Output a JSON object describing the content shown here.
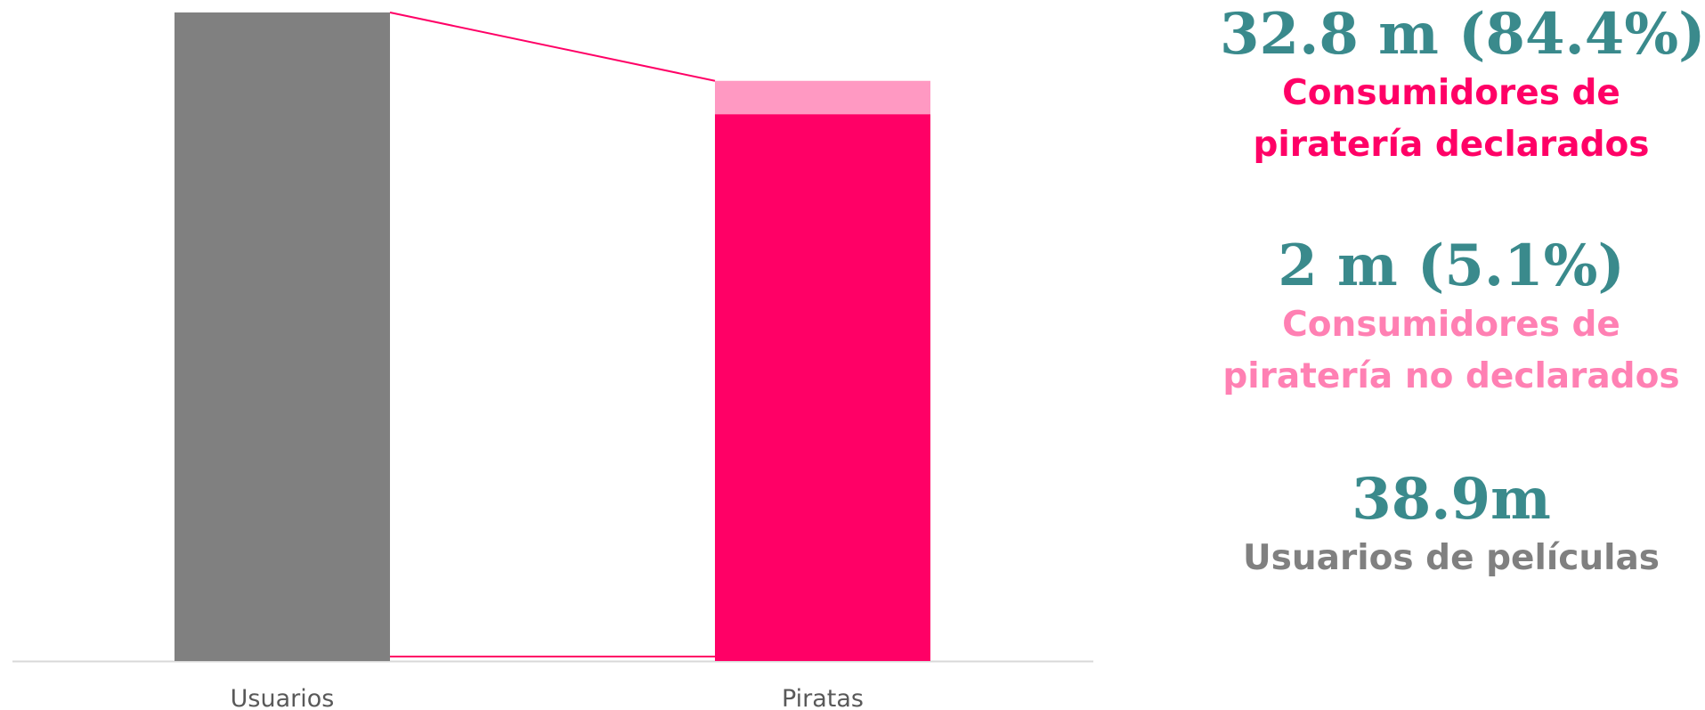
{
  "chart_data": {
    "type": "bar",
    "categories": [
      "Usuarios",
      "Piratas"
    ],
    "series": [
      {
        "values": [
          38.9,
          32.8
        ],
        "colors": [
          "#808080",
          "#ff0066"
        ]
      },
      {
        "values": [
          0,
          2
        ],
        "colors": [
          "#808080",
          "#ff99c2"
        ]
      }
    ],
    "ylim": [
      0,
      38.9
    ],
    "grid": false,
    "connector_color": "#ff0066",
    "axis_color": "#d9d9d9"
  },
  "stats": {
    "declared": {
      "value": "32.8 m (84.4%)",
      "label_lines": [
        "Consumidores de",
        "piratería declarados"
      ],
      "color": "#ff0066"
    },
    "undeclared": {
      "value": "2 m (5.1%)",
      "label_lines": [
        "Consumidores de",
        "piratería no declarados"
      ],
      "color": "#ff80b3"
    },
    "users": {
      "value": "38.9m",
      "label_lines": [
        "Usuarios de películas"
      ],
      "color": "#808080"
    }
  }
}
